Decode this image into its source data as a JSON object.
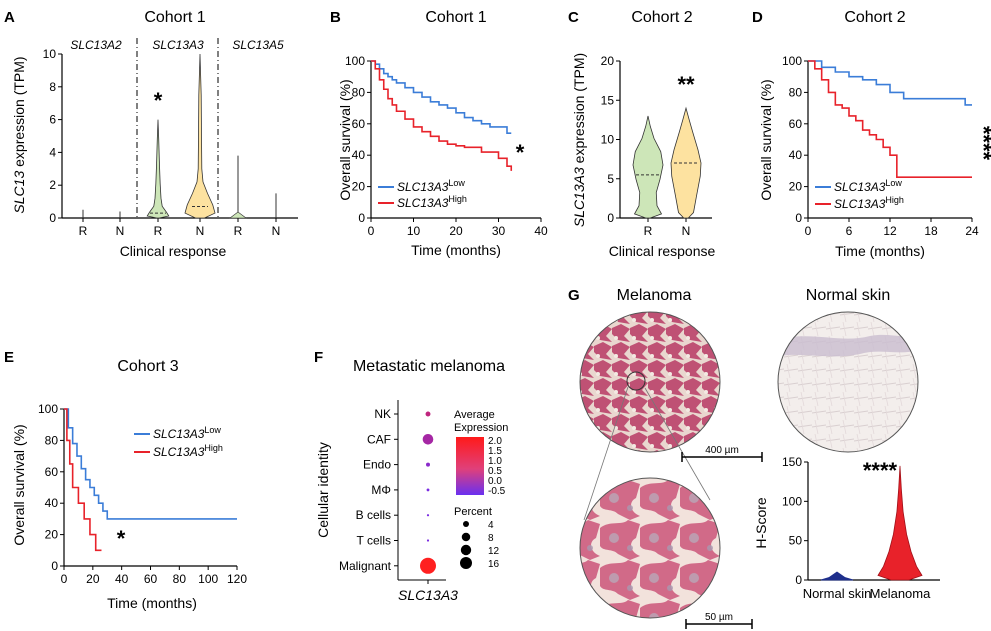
{
  "panels": {
    "A": {
      "letter": "A",
      "title": "Cohort 1",
      "genes": [
        "SLC13A2",
        "SLC13A3",
        "SLC13A5"
      ],
      "ylabel_gene": "SLC13",
      "ylabel_rest": " expression (TPM)",
      "xlabel": "Clinical response",
      "star": "*"
    },
    "B": {
      "letter": "B",
      "title": "Cohort 1",
      "xlabel": "Time (months)",
      "ylabel": "Overall survival (%)",
      "star": "*",
      "legend": [
        {
          "gene": "SLC13A3",
          "sup": "Low"
        },
        {
          "gene": "SLC13A3",
          "sup": "High"
        }
      ]
    },
    "C": {
      "letter": "C",
      "title": "Cohort 2",
      "ylabel_gene": "SLC13A3",
      "ylabel_rest": " expression (TPM)",
      "xlabel": "Clinical response",
      "star": "**"
    },
    "D": {
      "letter": "D",
      "title": "Cohort 2",
      "xlabel": "Time (months)",
      "ylabel": "Overall survival (%)",
      "star": "****",
      "legend": [
        {
          "gene": "SLC13A3",
          "sup": "Low"
        },
        {
          "gene": "SLC13A3",
          "sup": "High"
        }
      ]
    },
    "E": {
      "letter": "E",
      "title": "Cohort 3",
      "xlabel": "Time (months)",
      "ylabel": "Overall survival (%)",
      "star": "*",
      "legend": [
        {
          "gene": "SLC13A3",
          "sup": "Low"
        },
        {
          "gene": "SLC13A3",
          "sup": "High"
        }
      ]
    },
    "F": {
      "letter": "F",
      "title": "Metastatic melanoma",
      "ylabel": "Cellular identity",
      "xlabel": "SLC13A3",
      "avg_title_1": "Average",
      "avg_title_2": "Expression",
      "pct_title": "Percent"
    },
    "G": {
      "letter": "G",
      "title_left": "Melanoma",
      "title_right": "Normal skin",
      "scale_top": "400 µm",
      "scale_bottom": "50 µm",
      "ylabel": "H-Score",
      "star": "****"
    }
  },
  "colors": {
    "low": "#3b7dd8",
    "high": "#e8222a",
    "violin_R": "#cde6b8",
    "violin_N": "#fde2a0",
    "violin_edge": "#333333",
    "stain": "#b4335a",
    "dot_high": "#ff2020",
    "dot_low": "#7a2be2"
  },
  "chart_data": [
    {
      "panel": "A",
      "type": "violin",
      "title": "Cohort 1",
      "ylabel": "SLC13 expression (TPM)",
      "xlabel": "Clinical response",
      "groups": [
        {
          "gene": "SLC13A2",
          "categories": [
            "R",
            "N"
          ],
          "max": [
            0.5,
            0.4
          ]
        },
        {
          "gene": "SLC13A3",
          "categories": [
            "R",
            "N"
          ],
          "max": [
            6.0,
            10.0
          ],
          "median": [
            0.3,
            0.7
          ]
        },
        {
          "gene": "SLC13A5",
          "categories": [
            "R",
            "N"
          ],
          "max": [
            3.8,
            1.5
          ]
        }
      ],
      "ylim": [
        0,
        10
      ],
      "yticks": [
        0,
        2,
        4,
        6,
        8,
        10
      ],
      "annotation": "*"
    },
    {
      "panel": "B",
      "type": "line",
      "title": "Cohort 1",
      "xlabel": "Time (months)",
      "ylabel": "Overall survival (%)",
      "xlim": [
        0,
        40
      ],
      "ylim": [
        0,
        100
      ],
      "xticks": [
        0,
        10,
        20,
        30,
        40
      ],
      "yticks": [
        0,
        20,
        40,
        60,
        80,
        100
      ],
      "series": [
        {
          "name": "SLC13A3 Low",
          "x": [
            0,
            1,
            2,
            3,
            4,
            5,
            6,
            8,
            10,
            12,
            14,
            16,
            18,
            20,
            22,
            24,
            26,
            28,
            30,
            32,
            33
          ],
          "y": [
            100,
            98,
            95,
            92,
            90,
            88,
            86,
            83,
            80,
            77,
            74,
            72,
            70,
            67,
            64,
            62,
            60,
            58,
            58,
            54,
            54
          ]
        },
        {
          "name": "SLC13A3 High",
          "x": [
            0,
            1,
            2,
            3,
            4,
            5,
            6,
            8,
            10,
            12,
            14,
            16,
            18,
            20,
            22,
            24,
            26,
            28,
            30,
            32,
            33
          ],
          "y": [
            100,
            95,
            88,
            82,
            76,
            72,
            68,
            63,
            58,
            55,
            52,
            49,
            47,
            46,
            45,
            45,
            42,
            42,
            38,
            33,
            30
          ]
        }
      ],
      "annotation": "*"
    },
    {
      "panel": "C",
      "type": "violin",
      "title": "Cohort 2",
      "ylabel": "SLC13A3 expression (TPM)",
      "xlabel": "Clinical response",
      "categories": [
        "R",
        "N"
      ],
      "ylim": [
        0,
        20
      ],
      "yticks": [
        0,
        5,
        10,
        15,
        20
      ],
      "max": [
        13,
        14
      ],
      "median": [
        5.5,
        7
      ],
      "annotation": "**"
    },
    {
      "panel": "D",
      "type": "line",
      "title": "Cohort 2",
      "xlabel": "Time (months)",
      "ylabel": "Overall survival (%)",
      "xlim": [
        0,
        24
      ],
      "ylim": [
        0,
        100
      ],
      "xticks": [
        0,
        6,
        12,
        18,
        24
      ],
      "yticks": [
        0,
        20,
        40,
        60,
        80,
        100
      ],
      "series": [
        {
          "name": "SLC13A3 Low",
          "x": [
            0,
            2,
            4,
            6,
            8,
            10,
            12,
            14,
            22,
            23,
            24
          ],
          "y": [
            100,
            96,
            93,
            90,
            88,
            85,
            80,
            76,
            76,
            72,
            72
          ]
        },
        {
          "name": "SLC13A3 High",
          "x": [
            0,
            1,
            2,
            3,
            4,
            5,
            6,
            7,
            8,
            9,
            10,
            11,
            12,
            13,
            24
          ],
          "y": [
            100,
            95,
            88,
            80,
            72,
            70,
            65,
            62,
            56,
            53,
            50,
            45,
            40,
            26,
            26
          ]
        }
      ],
      "annotation": "****"
    },
    {
      "panel": "E",
      "type": "line",
      "title": "Cohort 3",
      "xlabel": "Time (months)",
      "ylabel": "Overall survival (%)",
      "xlim": [
        0,
        120
      ],
      "ylim": [
        0,
        100
      ],
      "xticks": [
        0,
        20,
        40,
        60,
        80,
        100,
        120
      ],
      "yticks": [
        0,
        20,
        40,
        60,
        80,
        100
      ],
      "series": [
        {
          "name": "SLC13A3 Low",
          "x": [
            0,
            3,
            6,
            9,
            12,
            15,
            18,
            21,
            24,
            27,
            30,
            35,
            120
          ],
          "y": [
            100,
            88,
            78,
            70,
            62,
            55,
            50,
            45,
            40,
            35,
            30,
            30,
            30
          ]
        },
        {
          "name": "SLC13A3 High",
          "x": [
            0,
            2,
            4,
            6,
            10,
            14,
            18,
            22,
            26
          ],
          "y": [
            100,
            80,
            65,
            50,
            40,
            30,
            20,
            10,
            10
          ]
        }
      ],
      "annotation": "*"
    },
    {
      "panel": "F",
      "type": "scatter",
      "title": "Metastatic melanoma",
      "xlabel": "SLC13A3",
      "ylabel": "Cellular identity",
      "categories": [
        "NK",
        "CAF",
        "Endo",
        "MΦ",
        "B cells",
        "T cells",
        "Malignant"
      ],
      "percent": [
        1.5,
        7,
        1,
        0.5,
        0.3,
        0.3,
        16
      ],
      "average_expression": [
        0.8,
        0.3,
        -0.2,
        -0.5,
        -0.5,
        -0.5,
        2.0
      ],
      "color_scale": {
        "ticks": [
          "2.0",
          "1.5",
          "1.0",
          "0.5",
          "0.0",
          "-0.5"
        ],
        "min": -0.5,
        "max": 2.0
      },
      "size_scale": {
        "ticks": [
          "4",
          "8",
          "12",
          "16"
        ]
      }
    },
    {
      "panel": "G",
      "type": "violin",
      "ylabel": "H-Score",
      "categories": [
        "Normal skin",
        "Melanoma"
      ],
      "ylim": [
        0,
        150
      ],
      "yticks": [
        0,
        50,
        100,
        150
      ],
      "max": [
        10,
        145
      ],
      "annotation": "****"
    }
  ]
}
